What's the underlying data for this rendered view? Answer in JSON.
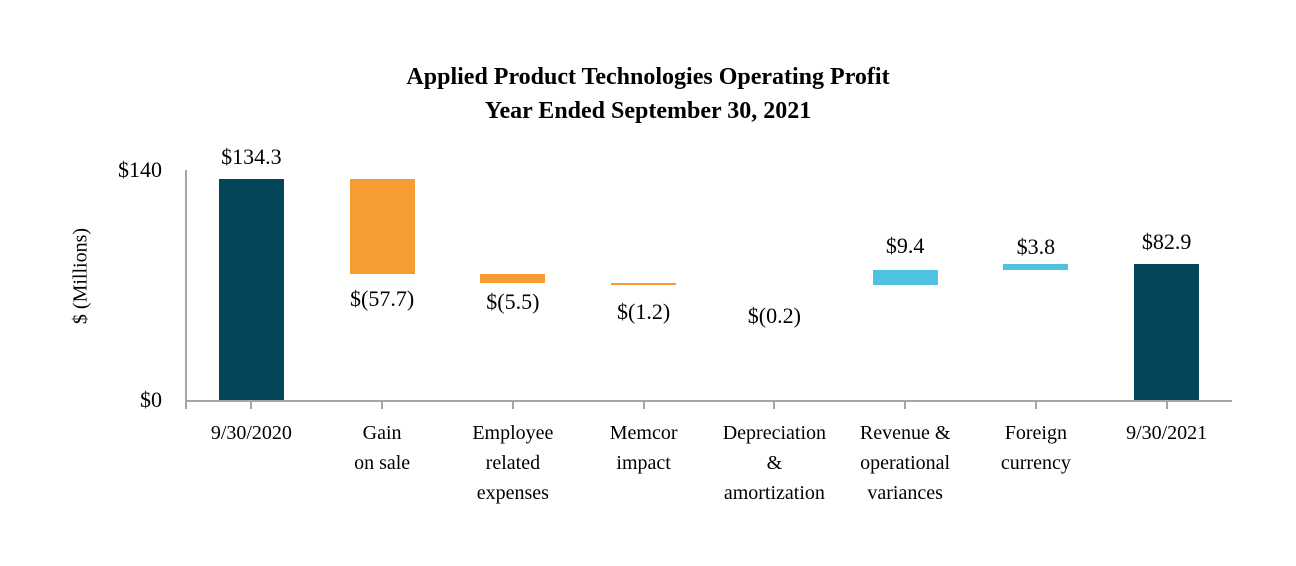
{
  "chart_data": {
    "type": "bar",
    "subtype": "waterfall",
    "title": "Applied Product Technologies Operating Profit",
    "subtitle": "Year Ended September 30, 2021",
    "ylabel": "$ (Millions)",
    "ylim": [
      0,
      140
    ],
    "yticks": [
      {
        "value": 0,
        "label": "$0"
      },
      {
        "value": 140,
        "label": "$140"
      }
    ],
    "grid": false,
    "legend": "none",
    "colors": {
      "total": "#04455a",
      "decrease": "#f79b33",
      "increase": "#4fc2e0",
      "axis": "#a6a6a6"
    },
    "categories": [
      {
        "label": "9/30/2020",
        "label_lines": [
          "9/30/2020"
        ],
        "role": "total",
        "value": 134.3,
        "value_label": "$134.3",
        "value_label_position": "above"
      },
      {
        "label": "Gain on sale",
        "label_lines": [
          "Gain",
          "on sale"
        ],
        "role": "decrease",
        "value": -57.7,
        "value_label": "$(57.7)",
        "value_label_position": "below"
      },
      {
        "label": "Employee related expenses",
        "label_lines": [
          "Employee",
          "related",
          "expenses"
        ],
        "role": "decrease",
        "value": -5.5,
        "value_label": "$(5.5)",
        "value_label_position": "below"
      },
      {
        "label": "Memcor impact",
        "label_lines": [
          "Memcor",
          "impact"
        ],
        "role": "decrease",
        "value": -1.2,
        "value_label": "$(1.2)",
        "value_label_position": "below"
      },
      {
        "label": "Depreciation & amortization",
        "label_lines": [
          "Depreciation",
          "&",
          "amortization"
        ],
        "role": "decrease",
        "value": -0.2,
        "value_label": "$(0.2)",
        "value_label_position": "below"
      },
      {
        "label": "Revenue & operational variances",
        "label_lines": [
          "Revenue &",
          "operational",
          "variances"
        ],
        "role": "increase",
        "value": 9.4,
        "value_label": "$9.4",
        "value_label_position": "above"
      },
      {
        "label": "Foreign currency",
        "label_lines": [
          "Foreign",
          "currency"
        ],
        "role": "increase",
        "value": 3.8,
        "value_label": "$3.8",
        "value_label_position": "above"
      },
      {
        "label": "9/30/2021",
        "label_lines": [
          "9/30/2021"
        ],
        "role": "total",
        "value": 82.9,
        "value_label": "$82.9",
        "value_label_position": "above"
      }
    ]
  }
}
